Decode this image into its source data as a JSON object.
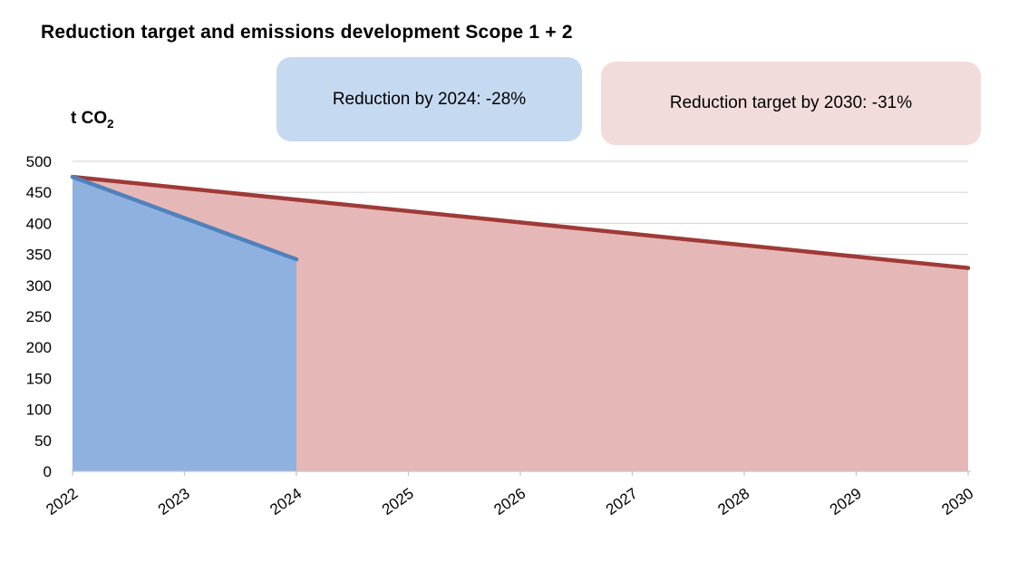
{
  "title": "Reduction target and emissions development Scope 1 + 2",
  "annotations": [
    {
      "text": "Reduction by 2024: -28%",
      "fill": "#c5d9f1",
      "refers_to_series": "Emissions development",
      "reduction_pct": -28
    },
    {
      "text": "Reduction target by 2030: -31%",
      "fill": "#f2dcdb",
      "refers_to_series": "Reduction target",
      "reduction_pct": -31
    }
  ],
  "ylabel_parts": {
    "prefix": "t CO",
    "sub": "2"
  },
  "chart_data": {
    "type": "area",
    "title": "Reduction target and emissions development Scope 1 + 2",
    "ylabel": "t CO2",
    "xlabel": "",
    "ylim": [
      0,
      500
    ],
    "ytick_step": 50,
    "x_categories": [
      2022,
      2023,
      2024,
      2025,
      2026,
      2027,
      2028,
      2029,
      2030
    ],
    "x_labels_rotation_deg": -35,
    "legend": "none",
    "grid": {
      "horizontal": true,
      "color": "#d9d9d9"
    },
    "axis_color": "#c6c6c6",
    "series": [
      {
        "name": "Reduction target by 2030",
        "points": [
          {
            "x": 2022,
            "y": 475
          },
          {
            "x": 2030,
            "y": 328
          }
        ],
        "shape": "straight-line",
        "reduction_pct": -31,
        "line_color": "#9e3a38",
        "fill_color": "#e5b8b7"
      },
      {
        "name": "Emissions development",
        "points": [
          {
            "x": 2022,
            "y": 475
          },
          {
            "x": 2024,
            "y": 342
          }
        ],
        "shape": "straight-line",
        "reduction_pct": -28,
        "line_color": "#4f81bd",
        "fill_color": "#8eb1e0"
      }
    ]
  }
}
